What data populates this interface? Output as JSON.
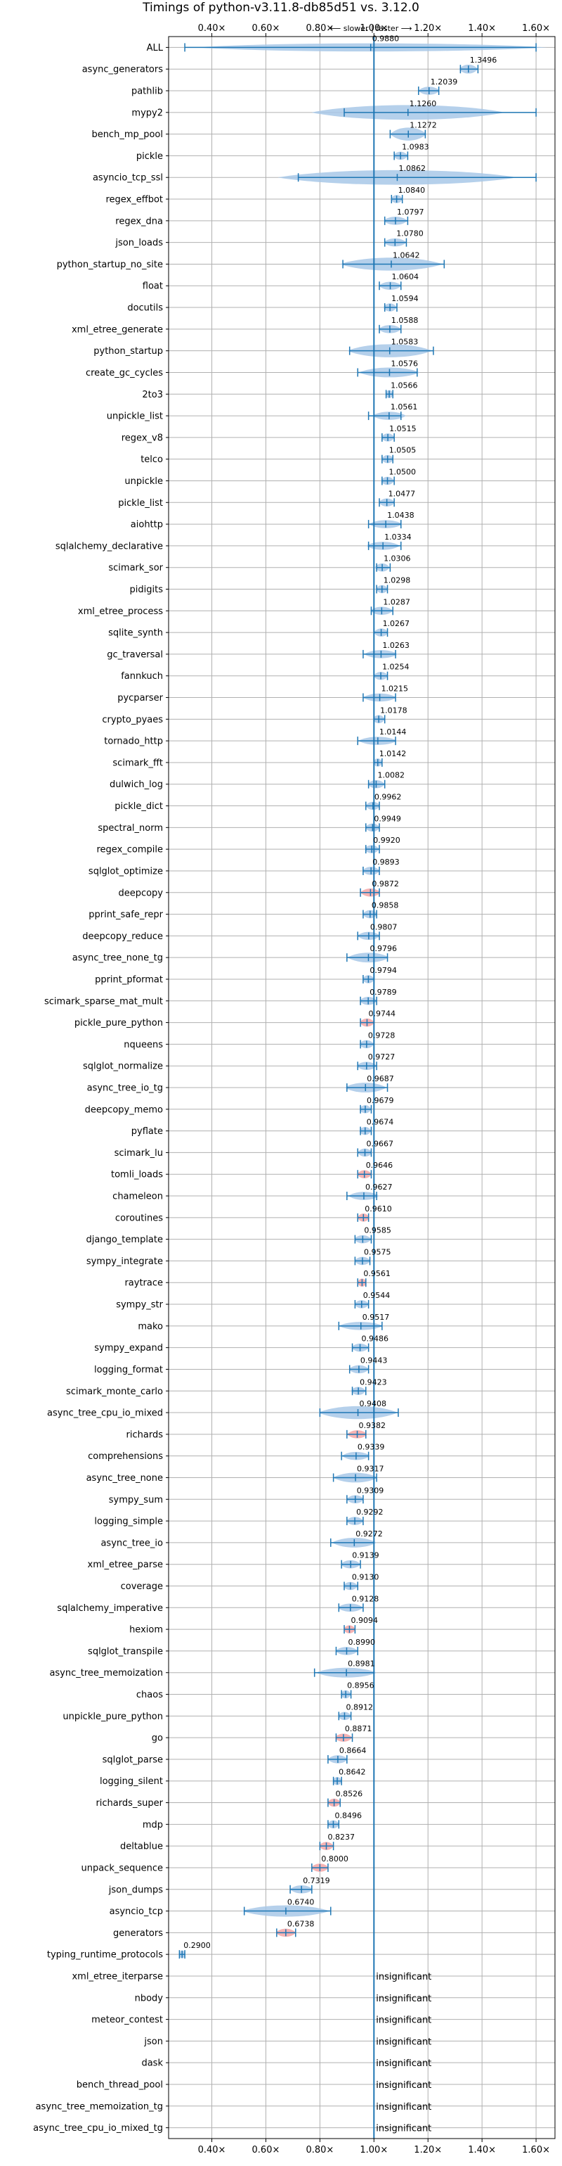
{
  "chart_data": {
    "type": "violin",
    "title": "Timings of python-v3.11.8-db85d51 vs. 3.12.0",
    "subtitle": "⟵ slower | faster ⟶",
    "x_ticks": [
      "0.40×",
      "0.60×",
      "0.80×",
      "1.00×",
      "1.20×",
      "1.40×",
      "1.60×"
    ],
    "x_tick_values": [
      0.4,
      0.6,
      0.8,
      1.0,
      1.2,
      1.4,
      1.6
    ],
    "xlim": [
      0.24,
      1.67
    ],
    "reference_line": 1.0,
    "grid": true,
    "colors": {
      "faster": "#a8c8e8",
      "slower": "#f4a6a6",
      "line": "#1f77b4"
    },
    "benchmarks": [
      {
        "name": "ALL",
        "value": "0.9880",
        "x": 0.988,
        "lo": 0.3,
        "hi": 1.6,
        "w": 0.5
      },
      {
        "name": "async_generators",
        "value": "1.3496",
        "x": 1.3496,
        "lo": 1.32,
        "hi": 1.385,
        "w": 0.55
      },
      {
        "name": "pathlib",
        "value": "1.2039",
        "x": 1.2039,
        "lo": 1.165,
        "hi": 1.24,
        "w": 0.5
      },
      {
        "name": "mypy2",
        "value": "1.1260",
        "x": 1.126,
        "lo": 0.89,
        "hi": 1.6,
        "w": 0.9
      },
      {
        "name": "bench_mp_pool",
        "value": "1.1272",
        "x": 1.1272,
        "lo": 1.06,
        "hi": 1.19,
        "w": 0.8
      },
      {
        "name": "pickle",
        "value": "1.0983",
        "x": 1.0983,
        "lo": 1.075,
        "hi": 1.125,
        "w": 0.5
      },
      {
        "name": "asyncio_tcp_ssl",
        "value": "1.0862",
        "x": 1.0862,
        "lo": 0.72,
        "hi": 1.6,
        "w": 0.9
      },
      {
        "name": "regex_effbot",
        "value": "1.0840",
        "x": 1.084,
        "lo": 1.065,
        "hi": 1.105,
        "w": 0.5
      },
      {
        "name": "regex_dna",
        "value": "1.0797",
        "x": 1.0797,
        "lo": 1.04,
        "hi": 1.125,
        "w": 0.5
      },
      {
        "name": "json_loads",
        "value": "1.0780",
        "x": 1.078,
        "lo": 1.04,
        "hi": 1.12,
        "w": 0.5
      },
      {
        "name": "python_startup_no_site",
        "value": "1.0642",
        "x": 1.0642,
        "lo": 0.885,
        "hi": 1.26,
        "w": 0.8
      },
      {
        "name": "float",
        "value": "1.0604",
        "x": 1.0604,
        "lo": 1.02,
        "hi": 1.1,
        "w": 0.5
      },
      {
        "name": "docutils",
        "value": "1.0594",
        "x": 1.0594,
        "lo": 1.04,
        "hi": 1.085,
        "w": 0.5
      },
      {
        "name": "xml_etree_generate",
        "value": "1.0588",
        "x": 1.0588,
        "lo": 1.02,
        "hi": 1.1,
        "w": 0.5
      },
      {
        "name": "python_startup",
        "value": "1.0583",
        "x": 1.0583,
        "lo": 0.91,
        "hi": 1.22,
        "w": 0.8
      },
      {
        "name": "create_gc_cycles",
        "value": "1.0576",
        "x": 1.0576,
        "lo": 0.94,
        "hi": 1.16,
        "w": 0.6
      },
      {
        "name": "2to3",
        "value": "1.0566",
        "x": 1.0566,
        "lo": 1.045,
        "hi": 1.07,
        "w": 0.5
      },
      {
        "name": "unpickle_list",
        "value": "1.0561",
        "x": 1.0561,
        "lo": 0.98,
        "hi": 1.1,
        "w": 0.5
      },
      {
        "name": "regex_v8",
        "value": "1.0515",
        "x": 1.0515,
        "lo": 1.03,
        "hi": 1.075,
        "w": 0.5
      },
      {
        "name": "telco",
        "value": "1.0505",
        "x": 1.0505,
        "lo": 1.03,
        "hi": 1.07,
        "w": 0.5
      },
      {
        "name": "unpickle",
        "value": "1.0500",
        "x": 1.05,
        "lo": 1.03,
        "hi": 1.075,
        "w": 0.5
      },
      {
        "name": "pickle_list",
        "value": "1.0477",
        "x": 1.0477,
        "lo": 1.02,
        "hi": 1.075,
        "w": 0.5
      },
      {
        "name": "aiohttp",
        "value": "1.0438",
        "x": 1.0438,
        "lo": 0.98,
        "hi": 1.1,
        "w": 0.5
      },
      {
        "name": "sqlalchemy_declarative",
        "value": "1.0334",
        "x": 1.0334,
        "lo": 0.98,
        "hi": 1.1,
        "w": 0.5
      },
      {
        "name": "scimark_sor",
        "value": "1.0306",
        "x": 1.0306,
        "lo": 1.01,
        "hi": 1.06,
        "w": 0.5
      },
      {
        "name": "pidigits",
        "value": "1.0298",
        "x": 1.0298,
        "lo": 1.01,
        "hi": 1.05,
        "w": 0.5
      },
      {
        "name": "xml_etree_process",
        "value": "1.0287",
        "x": 1.0287,
        "lo": 0.99,
        "hi": 1.07,
        "w": 0.5
      },
      {
        "name": "sqlite_synth",
        "value": "1.0267",
        "x": 1.0267,
        "lo": 1.0,
        "hi": 1.05,
        "w": 0.5
      },
      {
        "name": "gc_traversal",
        "value": "1.0263",
        "x": 1.0263,
        "lo": 0.96,
        "hi": 1.08,
        "w": 0.5
      },
      {
        "name": "fannkuch",
        "value": "1.0254",
        "x": 1.0254,
        "lo": 1.0,
        "hi": 1.05,
        "w": 0.5
      },
      {
        "name": "pycparser",
        "value": "1.0215",
        "x": 1.0215,
        "lo": 0.96,
        "hi": 1.08,
        "w": 0.5
      },
      {
        "name": "crypto_pyaes",
        "value": "1.0178",
        "x": 1.0178,
        "lo": 1.0,
        "hi": 1.04,
        "w": 0.5
      },
      {
        "name": "tornado_http",
        "value": "1.0144",
        "x": 1.0144,
        "lo": 0.94,
        "hi": 1.08,
        "w": 0.5
      },
      {
        "name": "scimark_fft",
        "value": "1.0142",
        "x": 1.0142,
        "lo": 1.0,
        "hi": 1.03,
        "w": 0.5
      },
      {
        "name": "dulwich_log",
        "value": "1.0082",
        "x": 1.0082,
        "lo": 0.98,
        "hi": 1.04,
        "w": 0.5
      },
      {
        "name": "pickle_dict",
        "value": "0.9962",
        "x": 0.9962,
        "lo": 0.97,
        "hi": 1.02,
        "w": 0.5
      },
      {
        "name": "spectral_norm",
        "value": "0.9949",
        "x": 0.9949,
        "lo": 0.97,
        "hi": 1.02,
        "w": 0.5
      },
      {
        "name": "regex_compile",
        "value": "0.9920",
        "x": 0.992,
        "lo": 0.97,
        "hi": 1.02,
        "w": 0.5
      },
      {
        "name": "sqlglot_optimize",
        "value": "0.9893",
        "x": 0.9893,
        "lo": 0.96,
        "hi": 1.02,
        "w": 0.5
      },
      {
        "name": "deepcopy",
        "value": "0.9872",
        "x": 0.9872,
        "lo": 0.95,
        "hi": 1.02,
        "w": 0.5,
        "slow": true
      },
      {
        "name": "pprint_safe_repr",
        "value": "0.9858",
        "x": 0.9858,
        "lo": 0.96,
        "hi": 1.01,
        "w": 0.5
      },
      {
        "name": "deepcopy_reduce",
        "value": "0.9807",
        "x": 0.9807,
        "lo": 0.94,
        "hi": 1.02,
        "w": 0.5
      },
      {
        "name": "async_tree_none_tg",
        "value": "0.9796",
        "x": 0.9796,
        "lo": 0.9,
        "hi": 1.05,
        "w": 0.6
      },
      {
        "name": "pprint_pformat",
        "value": "0.9794",
        "x": 0.9794,
        "lo": 0.96,
        "hi": 1.0,
        "w": 0.5
      },
      {
        "name": "scimark_sparse_mat_mult",
        "value": "0.9789",
        "x": 0.9789,
        "lo": 0.95,
        "hi": 1.01,
        "w": 0.5
      },
      {
        "name": "pickle_pure_python",
        "value": "0.9744",
        "x": 0.9744,
        "lo": 0.95,
        "hi": 1.0,
        "w": 0.5,
        "slow": true
      },
      {
        "name": "nqueens",
        "value": "0.9728",
        "x": 0.9728,
        "lo": 0.95,
        "hi": 1.0,
        "w": 0.5
      },
      {
        "name": "sqlglot_normalize",
        "value": "0.9727",
        "x": 0.9727,
        "lo": 0.94,
        "hi": 1.01,
        "w": 0.5
      },
      {
        "name": "async_tree_io_tg",
        "value": "0.9687",
        "x": 0.9687,
        "lo": 0.9,
        "hi": 1.05,
        "w": 0.6
      },
      {
        "name": "deepcopy_memo",
        "value": "0.9679",
        "x": 0.9679,
        "lo": 0.95,
        "hi": 0.99,
        "w": 0.5
      },
      {
        "name": "pyflate",
        "value": "0.9674",
        "x": 0.9674,
        "lo": 0.95,
        "hi": 0.99,
        "w": 0.5
      },
      {
        "name": "scimark_lu",
        "value": "0.9667",
        "x": 0.9667,
        "lo": 0.94,
        "hi": 0.99,
        "w": 0.5
      },
      {
        "name": "tomli_loads",
        "value": "0.9646",
        "x": 0.9646,
        "lo": 0.94,
        "hi": 0.99,
        "w": 0.5,
        "slow": true
      },
      {
        "name": "chameleon",
        "value": "0.9627",
        "x": 0.9627,
        "lo": 0.9,
        "hi": 1.01,
        "w": 0.5
      },
      {
        "name": "coroutines",
        "value": "0.9610",
        "x": 0.961,
        "lo": 0.94,
        "hi": 0.98,
        "w": 0.5,
        "slow": true
      },
      {
        "name": "django_template",
        "value": "0.9585",
        "x": 0.9585,
        "lo": 0.93,
        "hi": 0.99,
        "w": 0.5
      },
      {
        "name": "sympy_integrate",
        "value": "0.9575",
        "x": 0.9575,
        "lo": 0.93,
        "hi": 0.985,
        "w": 0.5
      },
      {
        "name": "raytrace",
        "value": "0.9561",
        "x": 0.9561,
        "lo": 0.94,
        "hi": 0.97,
        "w": 0.5,
        "slow": true
      },
      {
        "name": "sympy_str",
        "value": "0.9544",
        "x": 0.9544,
        "lo": 0.93,
        "hi": 0.98,
        "w": 0.5
      },
      {
        "name": "mako",
        "value": "0.9517",
        "x": 0.9517,
        "lo": 0.87,
        "hi": 1.03,
        "w": 0.5
      },
      {
        "name": "sympy_expand",
        "value": "0.9486",
        "x": 0.9486,
        "lo": 0.92,
        "hi": 0.98,
        "w": 0.5
      },
      {
        "name": "logging_format",
        "value": "0.9443",
        "x": 0.9443,
        "lo": 0.91,
        "hi": 0.98,
        "w": 0.5
      },
      {
        "name": "scimark_monte_carlo",
        "value": "0.9423",
        "x": 0.9423,
        "lo": 0.92,
        "hi": 0.97,
        "w": 0.5
      },
      {
        "name": "async_tree_cpu_io_mixed",
        "value": "0.9408",
        "x": 0.9408,
        "lo": 0.8,
        "hi": 1.09,
        "w": 0.8
      },
      {
        "name": "richards",
        "value": "0.9382",
        "x": 0.9382,
        "lo": 0.9,
        "hi": 0.97,
        "w": 0.5,
        "slow": true
      },
      {
        "name": "comprehensions",
        "value": "0.9339",
        "x": 0.9339,
        "lo": 0.88,
        "hi": 0.98,
        "w": 0.5
      },
      {
        "name": "async_tree_none",
        "value": "0.9317",
        "x": 0.9317,
        "lo": 0.85,
        "hi": 1.01,
        "w": 0.6
      },
      {
        "name": "sympy_sum",
        "value": "0.9309",
        "x": 0.9309,
        "lo": 0.9,
        "hi": 0.96,
        "w": 0.5
      },
      {
        "name": "logging_simple",
        "value": "0.9292",
        "x": 0.9292,
        "lo": 0.9,
        "hi": 0.96,
        "w": 0.5
      },
      {
        "name": "async_tree_io",
        "value": "0.9272",
        "x": 0.9272,
        "lo": 0.84,
        "hi": 1.0,
        "w": 0.6
      },
      {
        "name": "xml_etree_parse",
        "value": "0.9139",
        "x": 0.9139,
        "lo": 0.88,
        "hi": 0.95,
        "w": 0.5
      },
      {
        "name": "coverage",
        "value": "0.9130",
        "x": 0.913,
        "lo": 0.89,
        "hi": 0.94,
        "w": 0.5
      },
      {
        "name": "sqlalchemy_imperative",
        "value": "0.9128",
        "x": 0.9128,
        "lo": 0.87,
        "hi": 0.96,
        "w": 0.5
      },
      {
        "name": "hexiom",
        "value": "0.9094",
        "x": 0.9094,
        "lo": 0.89,
        "hi": 0.93,
        "w": 0.5,
        "slow": true
      },
      {
        "name": "sqlglot_transpile",
        "value": "0.8990",
        "x": 0.899,
        "lo": 0.86,
        "hi": 0.94,
        "w": 0.5
      },
      {
        "name": "async_tree_memoization",
        "value": "0.8981",
        "x": 0.8981,
        "lo": 0.78,
        "hi": 1.0,
        "w": 0.6
      },
      {
        "name": "chaos",
        "value": "0.8956",
        "x": 0.8956,
        "lo": 0.88,
        "hi": 0.915,
        "w": 0.5
      },
      {
        "name": "unpickle_pure_python",
        "value": "0.8912",
        "x": 0.8912,
        "lo": 0.87,
        "hi": 0.915,
        "w": 0.5
      },
      {
        "name": "go",
        "value": "0.8871",
        "x": 0.8871,
        "lo": 0.86,
        "hi": 0.92,
        "w": 0.5,
        "slow": true
      },
      {
        "name": "sqlglot_parse",
        "value": "0.8664",
        "x": 0.8664,
        "lo": 0.83,
        "hi": 0.9,
        "w": 0.5
      },
      {
        "name": "logging_silent",
        "value": "0.8642",
        "x": 0.8642,
        "lo": 0.85,
        "hi": 0.88,
        "w": 0.5
      },
      {
        "name": "richards_super",
        "value": "0.8526",
        "x": 0.8526,
        "lo": 0.83,
        "hi": 0.875,
        "w": 0.5,
        "slow": true
      },
      {
        "name": "mdp",
        "value": "0.8496",
        "x": 0.8496,
        "lo": 0.83,
        "hi": 0.87,
        "w": 0.5
      },
      {
        "name": "deltablue",
        "value": "0.8237",
        "x": 0.8237,
        "lo": 0.8,
        "hi": 0.85,
        "w": 0.5,
        "slow": true
      },
      {
        "name": "unpack_sequence",
        "value": "0.8000",
        "x": 0.8,
        "lo": 0.77,
        "hi": 0.83,
        "w": 0.5,
        "slow": true
      },
      {
        "name": "json_dumps",
        "value": "0.7319",
        "x": 0.7319,
        "lo": 0.69,
        "hi": 0.77,
        "w": 0.5
      },
      {
        "name": "asyncio_tcp",
        "value": "0.6740",
        "x": 0.674,
        "lo": 0.52,
        "hi": 0.84,
        "w": 0.7
      },
      {
        "name": "generators",
        "value": "0.6738",
        "x": 0.6738,
        "lo": 0.64,
        "hi": 0.71,
        "w": 0.5,
        "slow": true
      },
      {
        "name": "typing_runtime_protocols",
        "value": "0.2900",
        "x": 0.29,
        "lo": 0.28,
        "hi": 0.3,
        "w": 0.5
      },
      {
        "name": "xml_etree_iterparse",
        "value": "insignificant",
        "insig": true
      },
      {
        "name": "nbody",
        "value": "insignificant",
        "insig": true
      },
      {
        "name": "meteor_contest",
        "value": "insignificant",
        "insig": true
      },
      {
        "name": "json",
        "value": "insignificant",
        "insig": true
      },
      {
        "name": "dask",
        "value": "insignificant",
        "insig": true
      },
      {
        "name": "bench_thread_pool",
        "value": "insignificant",
        "insig": true
      },
      {
        "name": "async_tree_memoization_tg",
        "value": "insignificant",
        "insig": true
      },
      {
        "name": "async_tree_cpu_io_mixed_tg",
        "value": "insignificant",
        "insig": true
      }
    ]
  }
}
